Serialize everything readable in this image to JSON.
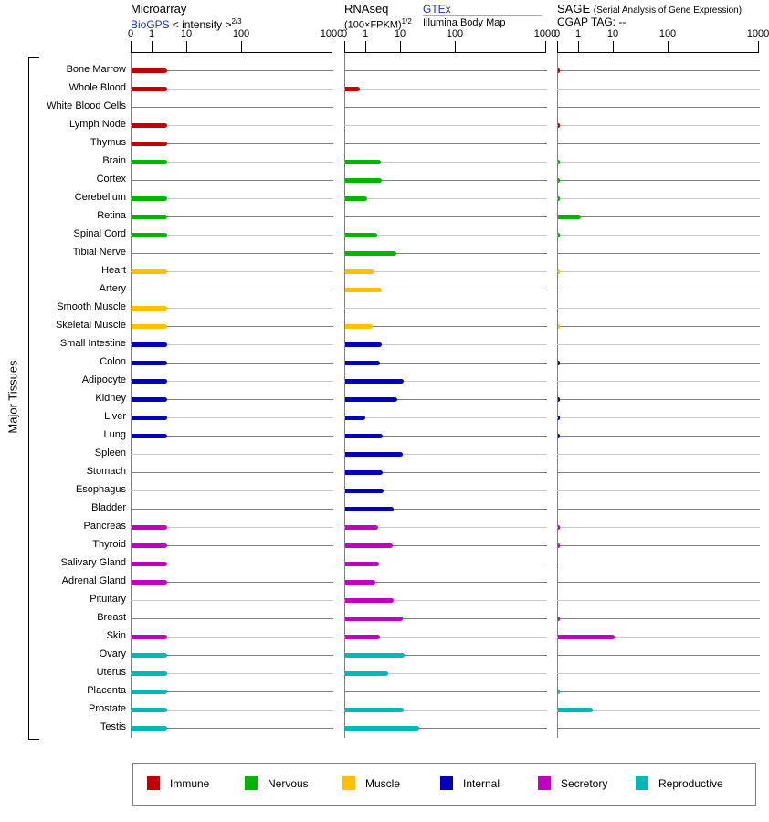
{
  "sidebar_label": "Major Tissues",
  "panels": {
    "microarray": {
      "title": "Microarray",
      "link": "BioGPS",
      "note": "< intensity >",
      "note_sup": "2/3"
    },
    "rnaseq": {
      "title": "RNAseq",
      "note": "(100×FPKM)",
      "note_sup": "1/2",
      "link": "GTEx",
      "link_caption": "Illumina Body Map"
    },
    "sage": {
      "title": "SAGE",
      "title_note": "(Serial Analysis of Gene Expression)",
      "subtitle": "CGAP TAG:  --"
    }
  },
  "groups": {
    "immune": {
      "label": "Immune",
      "color": "#c00000"
    },
    "nervous": {
      "label": "Nervous",
      "color": "#00b400"
    },
    "muscle": {
      "label": "Muscle",
      "color": "#ffc000"
    },
    "internal": {
      "label": "Internal",
      "color": "#0000bb"
    },
    "secretory": {
      "label": "Secretory",
      "color": "#c000c0"
    },
    "reproductive": {
      "label": "Reproductive",
      "color": "#00b8b8"
    }
  },
  "legend_order": [
    "immune",
    "nervous",
    "muscle",
    "internal",
    "secretory",
    "reproductive"
  ],
  "chart_data": {
    "type": "bar",
    "orientation": "horizontal",
    "x_ticks": [
      "0",
      "1",
      "10",
      "100",
      "1000"
    ],
    "x_tick_values": [
      0,
      1,
      10,
      100,
      1000
    ],
    "x_scale": "nonlinear axis with ticks 0,1,10,100,1000 (same for all three panels)",
    "panels": [
      "microarray",
      "rnaseq",
      "sage"
    ],
    "rows": [
      {
        "label": "Bone Marrow",
        "group": "immune",
        "microarray": 2.6,
        "rnaseq": null,
        "sage": 0.1
      },
      {
        "label": "Whole Blood",
        "group": "immune",
        "microarray": 2.6,
        "rnaseq": 0.7,
        "sage": null
      },
      {
        "label": "White Blood Cells",
        "group": "immune",
        "microarray": null,
        "rnaseq": null,
        "sage": null
      },
      {
        "label": "Lymph Node",
        "group": "immune",
        "microarray": 2.6,
        "rnaseq": null,
        "sage": 0.1
      },
      {
        "label": "Thymus",
        "group": "immune",
        "microarray": 2.6,
        "rnaseq": null,
        "sage": null
      },
      {
        "label": "Brain",
        "group": "nervous",
        "microarray": 2.6,
        "rnaseq": 2.6,
        "sage": 0.1
      },
      {
        "label": "Cortex",
        "group": "nervous",
        "microarray": null,
        "rnaseq": 2.8,
        "sage": 0.1
      },
      {
        "label": "Cerebellum",
        "group": "nervous",
        "microarray": 2.6,
        "rnaseq": 1.05,
        "sage": 0.1
      },
      {
        "label": "Retina",
        "group": "nervous",
        "microarray": 2.6,
        "rnaseq": null,
        "sage": 1.1
      },
      {
        "label": "Spinal Cord",
        "group": "nervous",
        "microarray": 2.6,
        "rnaseq": 2.1,
        "sage": 0.1
      },
      {
        "label": "Tibial Nerve",
        "group": "nervous",
        "microarray": null,
        "rnaseq": 7.4,
        "sage": null
      },
      {
        "label": "Heart",
        "group": "muscle",
        "microarray": 2.6,
        "rnaseq": 1.7,
        "sage": 0.1
      },
      {
        "label": "Artery",
        "group": "muscle",
        "microarray": null,
        "rnaseq": 2.8,
        "sage": null
      },
      {
        "label": "Smooth Muscle",
        "group": "muscle",
        "microarray": 2.6,
        "rnaseq": null,
        "sage": null
      },
      {
        "label": "Skeletal Muscle",
        "group": "muscle",
        "microarray": 2.6,
        "rnaseq": 1.5,
        "sage": 0.1
      },
      {
        "label": "Small Intestine",
        "group": "internal",
        "microarray": 2.6,
        "rnaseq": 2.8,
        "sage": null
      },
      {
        "label": "Colon",
        "group": "internal",
        "microarray": 2.6,
        "rnaseq": 2.5,
        "sage": 0.1
      },
      {
        "label": "Adipocyte",
        "group": "internal",
        "microarray": 2.6,
        "rnaseq": 11.2,
        "sage": null
      },
      {
        "label": "Kidney",
        "group": "internal",
        "microarray": 2.6,
        "rnaseq": 7.9,
        "sage": 0.1
      },
      {
        "label": "Liver",
        "group": "internal",
        "microarray": 2.6,
        "rnaseq": 0.95,
        "sage": 0.1
      },
      {
        "label": "Lung",
        "group": "internal",
        "microarray": 2.6,
        "rnaseq": 3.0,
        "sage": 0.1
      },
      {
        "label": "Spleen",
        "group": "internal",
        "microarray": null,
        "rnaseq": 10.8,
        "sage": null
      },
      {
        "label": "Stomach",
        "group": "internal",
        "microarray": null,
        "rnaseq": 3.0,
        "sage": null
      },
      {
        "label": "Esophagus",
        "group": "internal",
        "microarray": null,
        "rnaseq": 3.2,
        "sage": null
      },
      {
        "label": "Bladder",
        "group": "internal",
        "microarray": null,
        "rnaseq": 6.2,
        "sage": null
      },
      {
        "label": "Pancreas",
        "group": "secretory",
        "microarray": 2.6,
        "rnaseq": 2.2,
        "sage": 0.1
      },
      {
        "label": "Thyroid",
        "group": "secretory",
        "microarray": 2.6,
        "rnaseq": 5.8,
        "sage": 0.1
      },
      {
        "label": "Salivary Gland",
        "group": "secretory",
        "microarray": 2.6,
        "rnaseq": 2.3,
        "sage": null
      },
      {
        "label": "Adrenal Gland",
        "group": "secretory",
        "microarray": 2.6,
        "rnaseq": 1.8,
        "sage": null
      },
      {
        "label": "Pituitary",
        "group": "secretory",
        "microarray": null,
        "rnaseq": 6.2,
        "sage": null
      },
      {
        "label": "Breast",
        "group": "secretory",
        "microarray": null,
        "rnaseq": 10.8,
        "sage": 0.1
      },
      {
        "label": "Skin",
        "group": "secretory",
        "microarray": 2.6,
        "rnaseq": 2.5,
        "sage": 10.4
      },
      {
        "label": "Ovary",
        "group": "reproductive",
        "microarray": 2.6,
        "rnaseq": 11.6,
        "sage": null
      },
      {
        "label": "Uterus",
        "group": "reproductive",
        "microarray": 2.6,
        "rnaseq": 4.3,
        "sage": null
      },
      {
        "label": "Placenta",
        "group": "reproductive",
        "microarray": 2.6,
        "rnaseq": null,
        "sage": 0.1
      },
      {
        "label": "Prostate",
        "group": "reproductive",
        "microarray": 2.6,
        "rnaseq": 11.2,
        "sage": 2.5
      },
      {
        "label": "Testis",
        "group": "reproductive",
        "microarray": 2.6,
        "rnaseq": 21.5,
        "sage": null
      }
    ]
  }
}
